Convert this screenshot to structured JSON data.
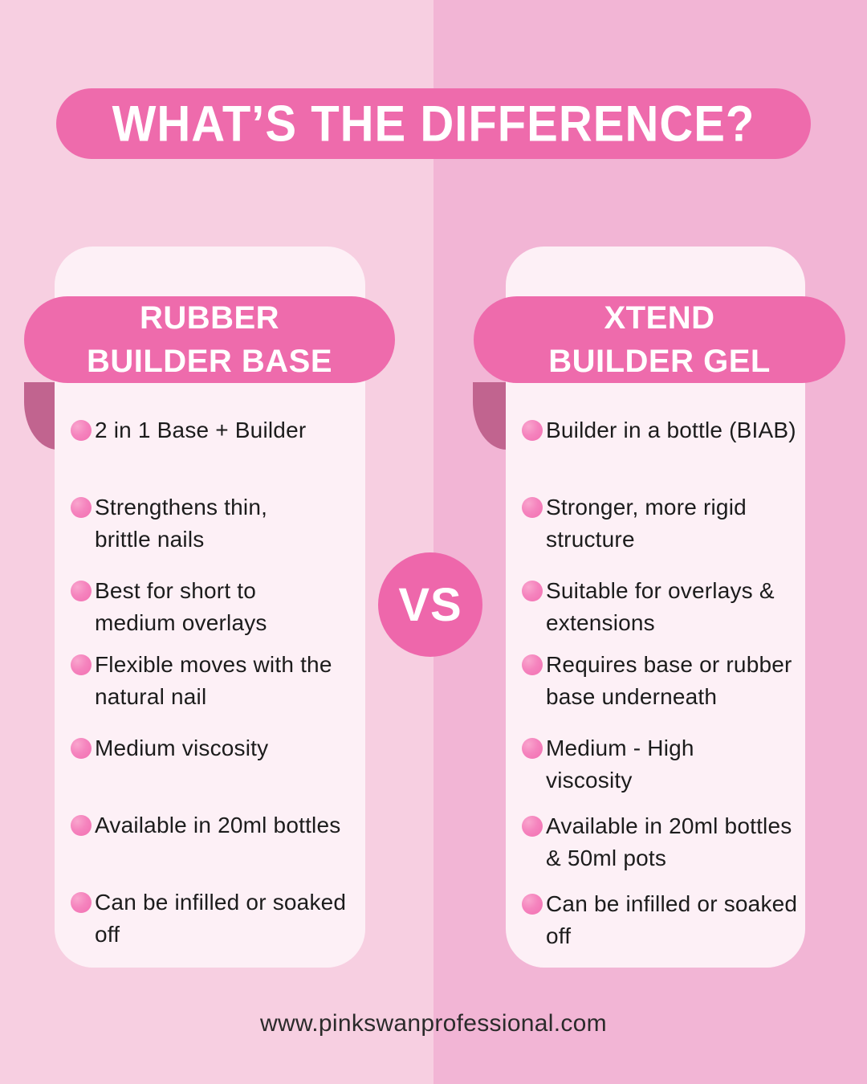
{
  "title": "WHAT’S THE DIFFERENCE?",
  "vs_label": "VS",
  "cards": [
    {
      "name": "RUBBER\nBUILDER BASE",
      "items": [
        "2 in 1 Base + Builder",
        "Strengthens thin,\nbrittle nails",
        "Best for short to\nmedium overlays",
        "Flexible moves with the\nnatural nail",
        "Medium viscosity",
        "Available in 20ml bottles",
        "Can be infilled or soaked\noff"
      ]
    },
    {
      "name": "XTEND\nBUILDER GEL",
      "items": [
        "Builder in a bottle (BIAB)",
        "Stronger, more rigid\nstructure",
        "Suitable for overlays &\nextensions",
        "Requires base or rubber\nbase underneath",
        "Medium - High\nviscosity",
        "Available in 20ml bottles\n& 50ml pots",
        "Can be infilled or soaked\noff"
      ]
    }
  ],
  "footer": {
    "website": "www.pinkswanprofessional.com"
  },
  "colors": {
    "background_left": "#f7cfe1",
    "background_right": "#f2b5d5",
    "accent_pink": "#ee6bac",
    "ribbon_fold": "#c1648f",
    "card_background": "#fdf0f6",
    "bullet_pink": "#f584be",
    "text": "#1c1c1c"
  }
}
